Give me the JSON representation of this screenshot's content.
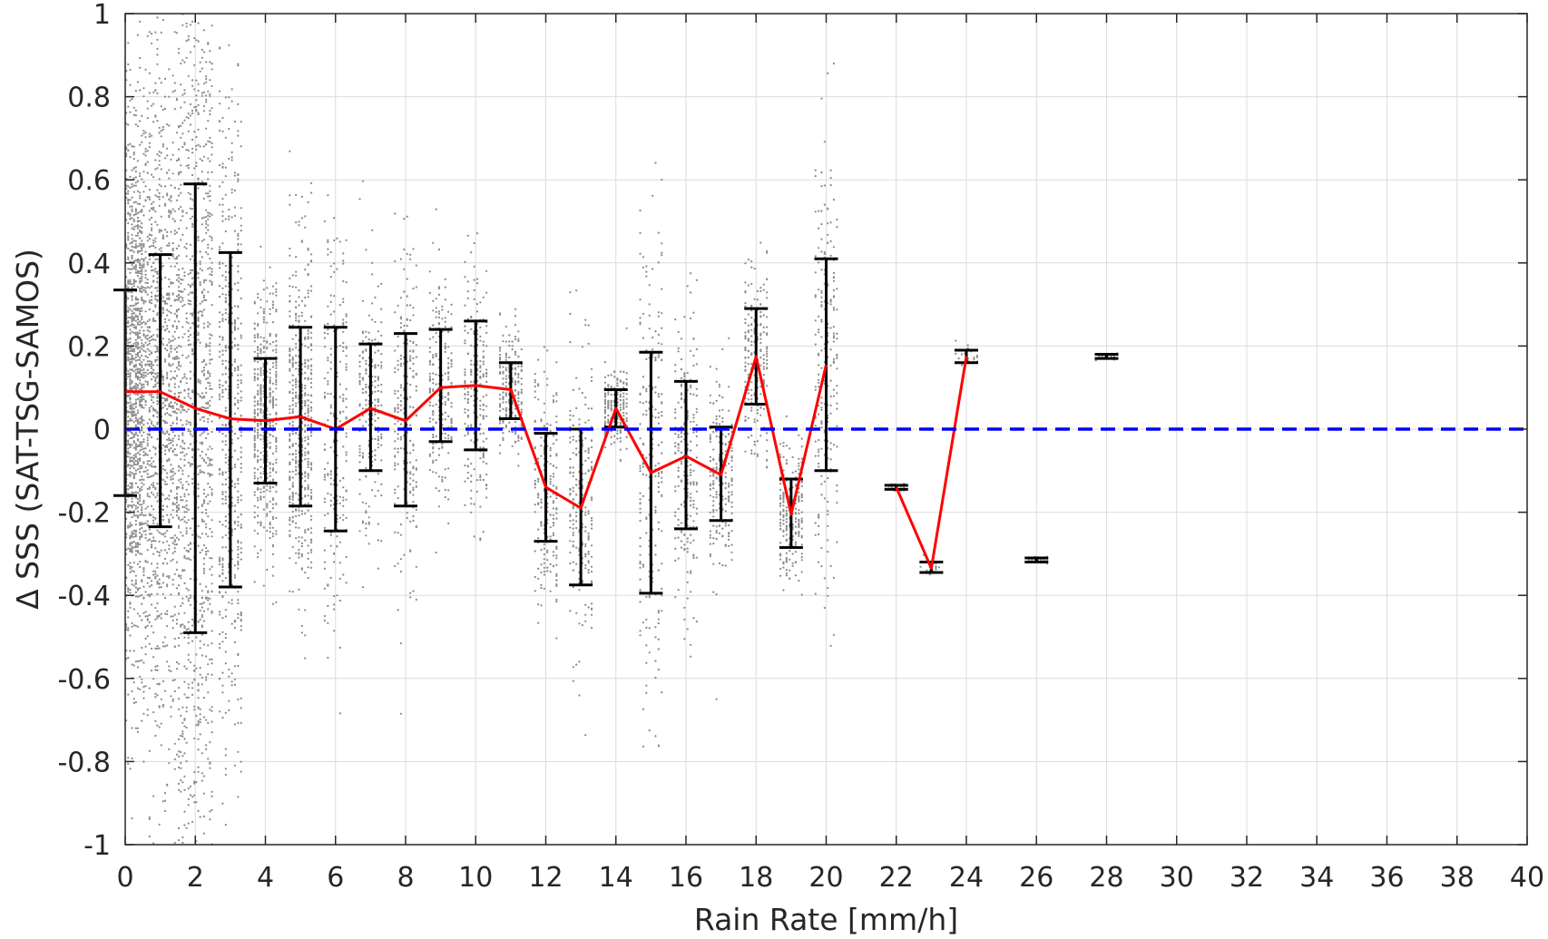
{
  "chart_data": {
    "type": "scatter",
    "xlabel": "Rain Rate [mm/h]",
    "ylabel": "Δ SSS (SAT-TSG-SAMOS)",
    "xlim": [
      0,
      40
    ],
    "ylim": [
      -1,
      1
    ],
    "x_ticks": [
      "0",
      "2",
      "4",
      "6",
      "8",
      "10",
      "12",
      "14",
      "16",
      "18",
      "20",
      "22",
      "24",
      "26",
      "28",
      "30",
      "32",
      "34",
      "36",
      "38",
      "40"
    ],
    "y_ticks": [
      "1",
      "0.8",
      "0.6",
      "0.4",
      "0.2",
      "0",
      "-0.2",
      "-0.4",
      "-0.6",
      "-0.8",
      "-1"
    ],
    "grid": true,
    "colors": {
      "scatter": "#8c8c8c",
      "mean_line": "#ff0000",
      "error_bars": "#000000",
      "zero_line": "#0000ff",
      "grid": "#dcdcdc",
      "axis": "#262626"
    },
    "series": [
      {
        "type": "errorbar",
        "x": [
          0,
          1,
          2,
          3,
          4,
          5,
          6,
          7,
          8,
          9,
          10,
          11,
          12,
          13,
          14,
          15,
          16,
          17,
          18,
          19,
          20,
          22,
          23,
          24,
          26,
          28
        ],
        "mean": [
          0.09,
          0.09,
          0.05,
          0.025,
          0.02,
          0.03,
          0.0,
          0.05,
          0.02,
          0.1,
          0.105,
          0.095,
          -0.14,
          -0.19,
          0.05,
          -0.105,
          -0.065,
          -0.11,
          0.175,
          -0.205,
          0.155,
          -0.14,
          -0.335,
          0.175,
          -0.315,
          0.175
        ],
        "upper": [
          0.335,
          0.42,
          0.59,
          0.425,
          0.17,
          0.245,
          0.245,
          0.205,
          0.23,
          0.24,
          0.26,
          0.16,
          -0.01,
          0.0,
          0.095,
          0.185,
          0.115,
          0.005,
          0.29,
          -0.12,
          0.41,
          -0.135,
          -0.32,
          0.19,
          -0.31,
          0.18
        ],
        "lower": [
          -0.16,
          -0.235,
          -0.49,
          -0.38,
          -0.13,
          -0.185,
          -0.245,
          -0.1,
          -0.185,
          -0.03,
          -0.05,
          0.025,
          -0.27,
          -0.375,
          0.005,
          -0.395,
          -0.24,
          -0.22,
          0.06,
          -0.285,
          -0.1,
          -0.145,
          -0.345,
          0.16,
          -0.32,
          0.17
        ]
      },
      {
        "type": "hline",
        "y": 0
      }
    ]
  }
}
